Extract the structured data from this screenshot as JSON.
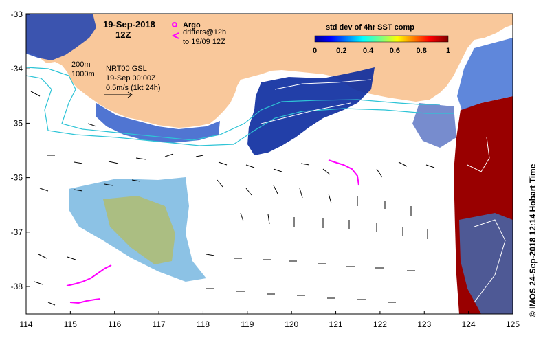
{
  "map": {
    "date_title": "19-Sep-2018",
    "time_title": "12Z",
    "product_line1": "NRT00 GSL",
    "product_line2": "19-Sep 00:00Z",
    "scale_label": "0.5m/s (1kt 24h)",
    "isobath_200": "200m",
    "isobath_1000": "1000m",
    "argo_label": "Argo",
    "drifters_label": "drifters@12h",
    "drifters_range": "to 19/09 12Z",
    "colorbar_title": "std dev of 4hr SST comp",
    "colorbar_ticks": [
      "0",
      "0.2",
      "0.4",
      "0.6",
      "0.8",
      "1"
    ],
    "credit": "© IMOS 24-Sep-2018 12:14 Hobart Time",
    "x_ticks": [
      "114",
      "115",
      "116",
      "117",
      "118",
      "119",
      "120",
      "121",
      "122",
      "123",
      "124",
      "125"
    ],
    "y_ticks": [
      "-33",
      "-34",
      "-35",
      "-36",
      "-37",
      "-38"
    ],
    "colors": {
      "land": "#f9c89b",
      "isobath": "#2ec4d6",
      "drifter": "#ff00ff",
      "high_variability": "#990000",
      "low_variability": "#00108c"
    }
  }
}
